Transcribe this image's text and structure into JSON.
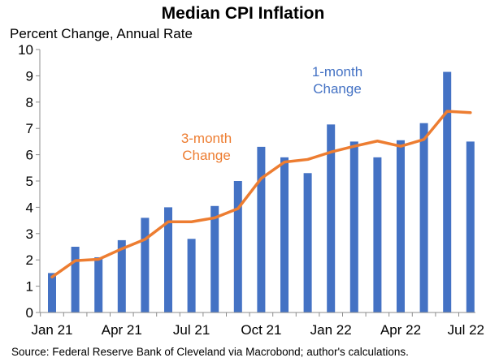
{
  "chart_data": {
    "type": "bar",
    "title": "Median CPI Inflation",
    "subtitle": "Percent Change, Annual Rate",
    "source": "Source: Federal Reserve Bank of Cleveland via Macrobond; author's calculations.",
    "categories": [
      "Jan 21",
      "Feb 21",
      "Mar 21",
      "Apr 21",
      "May 21",
      "Jun 21",
      "Jul 21",
      "Aug 21",
      "Sep 21",
      "Oct 21",
      "Nov 21",
      "Dec 21",
      "Jan 22",
      "Feb 22",
      "Mar 22",
      "Apr 22",
      "May 22",
      "Jun 22",
      "Jul 22"
    ],
    "x_tick_labels": [
      "Jan 21",
      "Apr 21",
      "Jul 21",
      "Oct 21",
      "Jan 22",
      "Apr 22",
      "Jul 22"
    ],
    "ylim": [
      0,
      10
    ],
    "yticks": [
      0,
      1,
      2,
      3,
      4,
      5,
      6,
      7,
      8,
      9,
      10
    ],
    "grid": false,
    "series": [
      {
        "type": "bar",
        "color": "#4472C4",
        "values": [
          1.5,
          2.5,
          2.1,
          2.75,
          3.6,
          4.0,
          2.8,
          4.05,
          5.0,
          6.3,
          5.9,
          5.3,
          7.15,
          6.5,
          5.9,
          6.55,
          7.2,
          9.15,
          6.5
        ]
      },
      {
        "type": "line",
        "color": "#ED7D31",
        "values": [
          1.35,
          1.97,
          2.02,
          2.42,
          2.78,
          3.45,
          3.45,
          3.6,
          3.95,
          5.1,
          5.72,
          5.82,
          6.1,
          6.32,
          6.52,
          6.32,
          6.58,
          7.65,
          7.6
        ]
      }
    ],
    "annotations": [
      {
        "text": "1-month",
        "series": 0
      },
      {
        "text": "Change",
        "series": 0
      },
      {
        "text": "3-month",
        "series": 1
      },
      {
        "text": "Change",
        "series": 1
      }
    ]
  }
}
